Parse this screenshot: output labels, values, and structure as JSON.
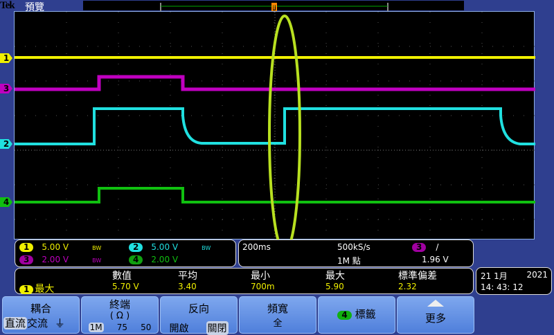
{
  "header": {
    "brand": "Tek",
    "mode": "預覽"
  },
  "channels": [
    {
      "id": "1",
      "color": "#f0f000",
      "scale": "5.00 V",
      "bw": "BW"
    },
    {
      "id": "2",
      "color": "#20e0e0",
      "scale": "5.00 V",
      "bw": "BW"
    },
    {
      "id": "3",
      "color": "#c000c0",
      "scale": "2.00 V",
      "bw": "BW"
    },
    {
      "id": "4",
      "color": "#10c010",
      "scale": "2.00 V",
      "bw": ""
    }
  ],
  "timebase": {
    "scale": "200ms",
    "rate": "500kS/s",
    "points": "1M 點",
    "trigger_channel": "3",
    "trigger_slope": "/",
    "trigger_level": "1.96 V"
  },
  "measurement": {
    "headers": [
      "數值",
      "平均",
      "最小",
      "最大",
      "標準偏差"
    ],
    "channel": "1",
    "name": "最大",
    "values": [
      "5.70 V",
      "3.40",
      "700m",
      "5.90",
      "2.32"
    ]
  },
  "datetime": {
    "date": "21 1月",
    "year": "2021",
    "time": "14: 43: 12"
  },
  "menu": [
    {
      "label": "耦合",
      "options": [
        "直流",
        "交流",
        "⏚"
      ],
      "selected": 0
    },
    {
      "label": "終端",
      "sub": "( Ω )",
      "options": [
        "1M",
        "75",
        "50"
      ],
      "selected": 0
    },
    {
      "label": "反向",
      "options": [
        "開啟",
        "關閉"
      ],
      "selected": 1
    },
    {
      "label": "頻寬",
      "sub": "全"
    },
    {
      "label": "標籤",
      "badge": "4"
    },
    {
      "label": "更多"
    }
  ],
  "trigger_marker": "T"
}
